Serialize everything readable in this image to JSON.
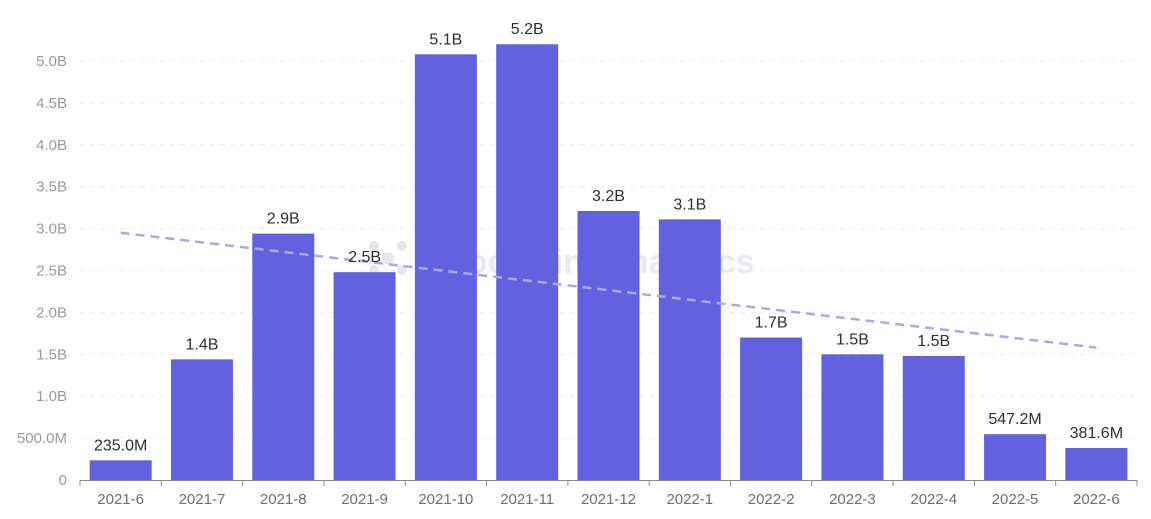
{
  "chart_data": {
    "type": "bar",
    "categories": [
      "2021-6",
      "2021-7",
      "2021-8",
      "2021-9",
      "2021-10",
      "2021-11",
      "2021-12",
      "2022-1",
      "2022-2",
      "2022-3",
      "2022-4",
      "2022-5",
      "2022-6"
    ],
    "values": [
      235000000,
      1440000000,
      2940000000,
      2480000000,
      5080000000,
      5200000000,
      3210000000,
      3110000000,
      1700000000,
      1500000000,
      1480000000,
      547200000,
      381600000
    ],
    "data_labels": [
      "235.0M",
      "1.4B",
      "2.9B",
      "2.5B",
      "5.1B",
      "5.2B",
      "3.2B",
      "3.1B",
      "1.7B",
      "1.5B",
      "1.5B",
      "547.2M",
      "381.6M"
    ],
    "y_ticks": [
      {
        "value": 0,
        "label": "0"
      },
      {
        "value": 500000000,
        "label": "500.0M"
      },
      {
        "value": 1000000000,
        "label": "1.0B"
      },
      {
        "value": 1500000000,
        "label": "1.5B"
      },
      {
        "value": 2000000000,
        "label": "2.0B"
      },
      {
        "value": 2500000000,
        "label": "2.5B"
      },
      {
        "value": 3000000000,
        "label": "3.0B"
      },
      {
        "value": 3500000000,
        "label": "3.5B"
      },
      {
        "value": 4000000000,
        "label": "4.0B"
      },
      {
        "value": 4500000000,
        "label": "4.5B"
      },
      {
        "value": 5000000000,
        "label": "5.0B"
      }
    ],
    "ylim": [
      0,
      5200000000
    ],
    "trendline": {
      "start": 2950000000,
      "end": 1580000000,
      "style": "dashed"
    },
    "grid": "horizontal-dashed",
    "bar_color": "#6262e0",
    "trend_color": "#a9a9ea",
    "title": "",
    "xlabel": "",
    "ylabel": ""
  },
  "watermark": "Footprint Analytics"
}
